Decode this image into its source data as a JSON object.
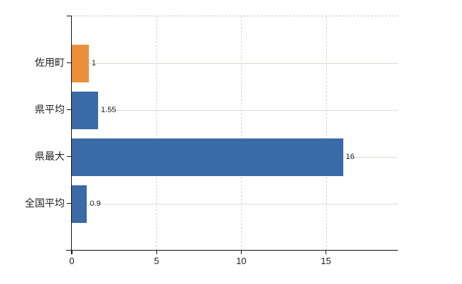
{
  "chart_data": {
    "type": "bar",
    "orientation": "horizontal",
    "title": "",
    "xlabel": "",
    "ylabel": "",
    "categories": [
      "佐用町",
      "県平均",
      "県最大",
      "全国平均"
    ],
    "values": [
      1,
      1.55,
      16,
      0.9
    ],
    "value_labels": [
      "1",
      "1.55",
      "16",
      "0.9"
    ],
    "bar_colors": [
      "#EB8F3A",
      "#3A6BA6",
      "#3A6BA6",
      "#3A6BA6"
    ],
    "x_ticks": [
      0,
      5,
      10,
      15
    ],
    "x_tick_labels": [
      "0",
      "5",
      "10",
      "15"
    ],
    "xlim": [
      0,
      19.25
    ],
    "grid": true,
    "legend": false,
    "accent_orange": "#EB8F3A",
    "accent_blue": "#3A6BA6",
    "axis_color": "#141414",
    "gridline_color": "#d6ddd3"
  }
}
